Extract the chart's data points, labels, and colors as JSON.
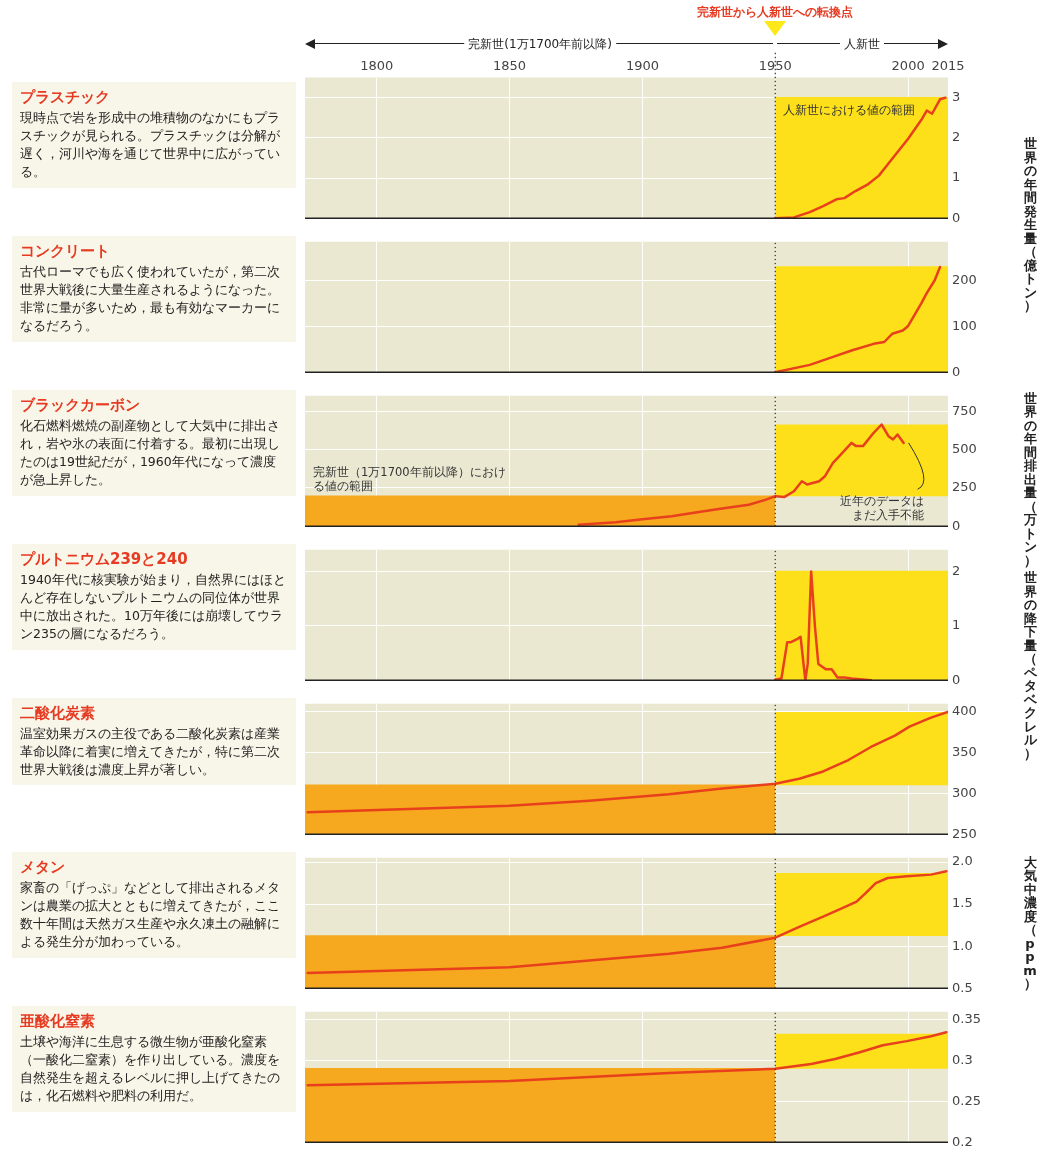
{
  "chart_data": [
    {
      "type": "other",
      "title": "完新世から人新世への転換点",
      "annotations": [
        "完新世(1万1700年前以降)",
        "人新世"
      ]
    },
    {
      "type": "line",
      "ylabel": "世界の年間発生量（億トン）",
      "annotations": [
        "プラスチック",
        "現時点で岩を形成中の堆積物のなかにもプラスチックが見られる。プラスチックは分解が遅く，河川や海を通じて世界中に広がっている。"
      ],
      "series": [
        {
          "type": "area",
          "name": "人新世における値の範囲",
          "x": [
            1950,
            2015
          ],
          "values": [
            3,
            3
          ],
          "color": "#fde01a"
        },
        {
          "type": "line",
          "x": [
            1950,
            1957,
            1963,
            1968,
            1973,
            1976,
            1980,
            1985,
            1989,
            1994,
            2000,
            2005,
            2007,
            2009,
            2012,
            2014
          ],
          "values": [
            0,
            0.02,
            0.15,
            0.3,
            0.47,
            0.5,
            0.67,
            0.85,
            1.06,
            1.48,
            1.98,
            2.45,
            2.68,
            2.6,
            2.96,
            3.0
          ],
          "color": "#e8401c"
        }
      ],
      "xlim": [
        1773,
        2015
      ],
      "xticks": [
        1800,
        1850,
        1900,
        1950,
        2000,
        2015
      ],
      "ylim": [
        0,
        3.5
      ],
      "yticks": [
        0,
        1,
        2,
        3
      ],
      "grid": true,
      "ref_lines": [
        {
          "axis": "x",
          "value": 1950,
          "line_style": "dotted",
          "color": "#333333"
        }
      ]
    },
    {
      "type": "line",
      "annotations": [
        "コンクリート",
        "古代ローマでも広く使われていたが，第二次世界大戦後に大量生産されるようになった。非常に量が多いため，最も有効なマーカーになるだろう。"
      ],
      "series": [
        {
          "type": "area",
          "x": [
            1950,
            2015
          ],
          "values": [
            230,
            230
          ],
          "color": "#fde01a"
        },
        {
          "type": "line",
          "x": [
            1950,
            1963,
            1972,
            1979,
            1987,
            1991,
            1994,
            1998,
            2000,
            2005,
            2007,
            2010,
            2012
          ],
          "values": [
            0,
            16,
            34,
            48,
            62,
            66,
            84,
            91,
            101,
            151,
            173,
            201,
            230
          ],
          "color": "#e8401c"
        }
      ],
      "xlim": [
        1773,
        2015
      ],
      "xticks": [
        1800,
        1850,
        1900,
        1950,
        2000,
        2015
      ],
      "ylim": [
        0,
        285
      ],
      "yticks": [
        0,
        100,
        200
      ],
      "grid": true,
      "tick_labels": "y",
      "ref_lines": [
        {
          "axis": "x",
          "value": 1950,
          "line_style": "dotted",
          "color": "#333333"
        }
      ]
    },
    {
      "type": "line",
      "ylabel": "世界の年間排出量（万トン）",
      "annotations": [
        "ブラックカーボン",
        "化石燃料燃焼の副産物として大気中に排出され，岩や氷の表面に付着する。最初に出現したのは19世紀だが，1960年代になって濃度が急上昇した。",
        {
          "text": "近年のデータはまだ入手不能",
          "x": 1998.3,
          "y": 543
        }
      ],
      "series": [
        {
          "type": "area",
          "name": "完新世（1万1700年前以降）における値の範囲",
          "x": [
            1773,
            1950
          ],
          "values": [
            195,
            195
          ],
          "color": "#f6a81e"
        },
        {
          "type": "line",
          "x": [
            1950,
            2015
          ],
          "values": [
            null,
            null
          ],
          "lower": [
            195,
            195
          ],
          "upper": [
            663,
            663
          ],
          "color": "#fde01a"
        },
        {
          "type": "line",
          "x": [
            1876,
            1890,
            1900,
            1911,
            1920,
            1930,
            1940,
            1946,
            1950,
            1953.5,
            1957,
            1960,
            1962,
            1966.5,
            1968.7,
            1971.7,
            1973.5,
            1978.7,
            1980.4,
            1983,
            1986.5,
            1990,
            1992.6,
            1994.3,
            1996,
            1998.3
          ],
          "values": [
            10,
            25,
            45,
            65,
            90,
            115,
            140,
            170,
            196,
            191,
            228,
            293,
            272,
            293,
            326,
            413,
            446,
            543,
            522,
            522,
            598,
            663,
            587,
            565,
            598,
            543
          ],
          "color": "#e8401c"
        }
      ],
      "xlim": [
        1773,
        2015
      ],
      "xticks": [
        1800,
        1850,
        1900,
        1950,
        2000,
        2015
      ],
      "ylim": [
        0,
        850
      ],
      "yticks": [
        0,
        250,
        500,
        750
      ],
      "grid": true,
      "tick_labels": "y",
      "ref_lines": [
        {
          "axis": "x",
          "value": 1950,
          "line_style": "dotted",
          "color": "#333333"
        }
      ]
    },
    {
      "type": "line",
      "ylabel": "世界の降下量（ペタベクレル）",
      "annotations": [
        "プルトニウム239と240",
        "1940年代に核実験が始まり，自然界にはほとんど存在しないプルトニウムの同位体が世界中に放出された。10万年後には崩壊してウラン235の層になるだろう。"
      ],
      "series": [
        {
          "type": "area",
          "x": [
            1950,
            2015
          ],
          "values": [
            2,
            2
          ],
          "color": "#fde01a"
        },
        {
          "type": "line",
          "x": [
            1950,
            1952.3,
            1954.5,
            1955.9,
            1958,
            1959.5,
            1961.3,
            1962.2,
            1963.5,
            1964.9,
            1966.2,
            1969,
            1971.2,
            1973.4,
            1976,
            1978.8,
            1986
          ],
          "values": [
            0.01,
            0.03,
            0.7,
            0.7,
            0.75,
            0.8,
            0,
            0.3,
            2.0,
            1.0,
            0.3,
            0.2,
            0.2,
            0.05,
            0.05,
            0.03,
            0
          ],
          "color": "#e8401c"
        }
      ],
      "xlim": [
        1773,
        2015
      ],
      "xticks": [
        1800,
        1850,
        1900,
        1950,
        2000,
        2015
      ],
      "ylim": [
        0,
        2.4
      ],
      "yticks": [
        0,
        1,
        2
      ],
      "grid": true,
      "tick_labels": "y",
      "ref_lines": [
        {
          "axis": "x",
          "value": 1950,
          "line_style": "dotted",
          "color": "#333333"
        }
      ]
    },
    {
      "type": "line",
      "ylabel": "大気中濃度（ppm）",
      "annotations": [
        "二酸化炭素",
        "温室効果ガスの主役である二酸化炭素は産業革命以降に着実に増えてきたが，特に第二次世界大戦後は濃度上昇が著しい。"
      ],
      "series": [
        {
          "type": "area",
          "x": [
            1773,
            1950
          ],
          "values": [
            310,
            310
          ],
          "color": "#f6a81e"
        },
        {
          "type": "line",
          "x": [
            1950,
            2015
          ],
          "values": [
            null,
            null
          ],
          "lower": [
            310,
            310
          ],
          "upper": [
            400,
            400
          ],
          "color": "#fde01a"
        },
        {
          "type": "line",
          "x": [
            1774,
            1850,
            1880,
            1910,
            1930,
            1950,
            1959,
            1968,
            1977.5,
            1986,
            1995,
            2000.5,
            2008.6,
            2014.9
          ],
          "values": [
            277,
            285,
            291,
            299,
            306,
            312,
            318,
            327,
            341,
            357,
            371,
            382,
            393,
            400
          ],
          "color": "#e8401c"
        }
      ],
      "xlim": [
        1773,
        2015
      ],
      "xticks": [
        1800,
        1850,
        1900,
        1950,
        2000,
        2015
      ],
      "ylim": [
        250,
        410
      ],
      "yticks": [
        250,
        300,
        350,
        400
      ],
      "grid": true,
      "tick_labels": "y",
      "ref_lines": [
        {
          "axis": "x",
          "value": 1950,
          "line_style": "dotted",
          "color": "#333333"
        }
      ]
    },
    {
      "type": "line",
      "annotations": [
        "メタン",
        "家畜の「げっぷ」などとして排出されるメタンは農業の拡大とともに増えてきたが，ここ数十年間は天然ガス生産や永久凍土の融解による発生分が加わっている。"
      ],
      "series": [
        {
          "type": "area",
          "x": [
            1773,
            1950
          ],
          "values": [
            1.12,
            1.12
          ],
          "color": "#f6a81e"
        },
        {
          "type": "line",
          "x": [
            1950,
            2015
          ],
          "values": [
            null,
            null
          ],
          "lower": [
            1.12,
            1.12
          ],
          "upper": [
            1.87,
            1.87
          ],
          "color": "#fde01a"
        },
        {
          "type": "line",
          "x": [
            1774,
            1850,
            1910,
            1930,
            1950,
            1959,
            1968,
            1975,
            1980.6,
            1984,
            1987.8,
            1992.3,
            1999.5,
            2008.6,
            2014.4
          ],
          "values": [
            0.68,
            0.75,
            0.91,
            0.98,
            1.1,
            1.23,
            1.35,
            1.45,
            1.53,
            1.63,
            1.75,
            1.81,
            1.83,
            1.85,
            1.89
          ],
          "color": "#e8401c"
        }
      ],
      "xlim": [
        1773,
        2015
      ],
      "xticks": [
        1800,
        1850,
        1900,
        1950,
        2000,
        2015
      ],
      "ylim": [
        0.5,
        2.05
      ],
      "yticks": [
        {
          "value": 0.5,
          "label": "0.5"
        },
        {
          "value": 1,
          "label": "1.0"
        },
        {
          "value": 1.5,
          "label": "1.5"
        },
        {
          "value": 2,
          "label": "2.0"
        }
      ],
      "grid": true,
      "tick_labels": "y",
      "ref_lines": [
        {
          "axis": "x",
          "value": 1950,
          "line_style": "dotted",
          "color": "#333333"
        }
      ]
    },
    {
      "type": "line",
      "annotations": [
        "亜酸化窒素",
        "土壌や海洋に生息する微生物が亜酸化窒素（一酸化二窒素）を作り出している。濃度を自然発生を超えるレベルに押し上げてきたのは，化石燃料や肥料の利用だ。"
      ],
      "series": [
        {
          "type": "area",
          "x": [
            1773,
            1950
          ],
          "values": [
            0.29,
            0.29
          ],
          "color": "#f6a81e"
        },
        {
          "type": "line",
          "x": [
            1950,
            2015
          ],
          "values": [
            null,
            null
          ],
          "lower": [
            0.29,
            0.29
          ],
          "upper": [
            0.333,
            0.333
          ],
          "color": "#fde01a"
        },
        {
          "type": "line",
          "x": [
            1774,
            1850,
            1910,
            1950,
            1963.5,
            1972.5,
            1981.5,
            1990.5,
            1999.5,
            2008.6,
            2014.4
          ],
          "values": [
            0.27,
            0.275,
            0.285,
            0.29,
            0.296,
            0.302,
            0.31,
            0.319,
            0.324,
            0.33,
            0.335
          ],
          "color": "#e8401c"
        }
      ],
      "xlim": [
        1773,
        2015
      ],
      "xticks": [
        1800,
        1850,
        1900,
        1950,
        2000,
        2015
      ],
      "ylim": [
        0.2,
        0.36
      ],
      "yticks": [
        0.2,
        0.25,
        0.3,
        0.35
      ],
      "grid": true,
      "tick_labels": "y",
      "ref_lines": [
        {
          "axis": "x",
          "value": 1950,
          "line_style": "dotted",
          "color": "#333333"
        }
      ]
    }
  ]
}
